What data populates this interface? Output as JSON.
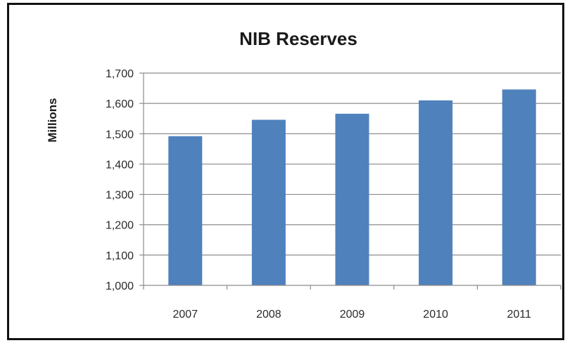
{
  "chart_data": {
    "type": "bar",
    "title": "NIB Reserves",
    "xlabel": "",
    "ylabel": "Millions",
    "categories": [
      "2007",
      "2008",
      "2009",
      "2010",
      "2011"
    ],
    "values": [
      1492,
      1546,
      1566,
      1610,
      1646
    ],
    "ylim": [
      1000,
      1700
    ],
    "yticks": [
      1000,
      1100,
      1200,
      1300,
      1400,
      1500,
      1600,
      1700
    ],
    "ytick_labels": [
      "1,000",
      "1,100",
      "1,200",
      "1,300",
      "1,400",
      "1,500",
      "1,600",
      "1,700"
    ],
    "grid": true,
    "legend": "none",
    "colors": {
      "bar": "#4f81bd",
      "grid": "#8c8c8c",
      "axis": "#8c8c8c",
      "frame": "#111111"
    }
  }
}
